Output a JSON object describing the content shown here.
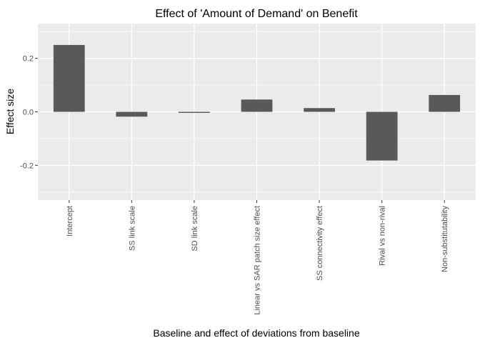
{
  "chart_data": {
    "type": "bar",
    "title": "Effect of 'Amount of Demand' on Benefit",
    "xlabel": "Baseline and effect of deviations from baseline",
    "ylabel": "Effect size",
    "categories": [
      "Intercept",
      "SS link scale",
      "SD link scale",
      "Linear vs SAR patch size effect",
      "SS connectivity effect",
      "Rival vs non-rival",
      "Non-substitutability"
    ],
    "values": [
      0.25,
      -0.018,
      -0.004,
      0.046,
      0.014,
      -0.182,
      0.063
    ],
    "ylim": [
      -0.33,
      0.33
    ],
    "yticks": [
      -0.2,
      0.0,
      0.2
    ],
    "ytick_labels": [
      "-0.2",
      "0.0",
      "0.2"
    ],
    "grid": true,
    "legend": "none",
    "colors": {
      "panel_background": "#ebebeb",
      "grid_major": "#ffffff",
      "bar_fill": "#595959",
      "tick_text": "#4d4d4d",
      "tick_mark": "#333333"
    }
  }
}
